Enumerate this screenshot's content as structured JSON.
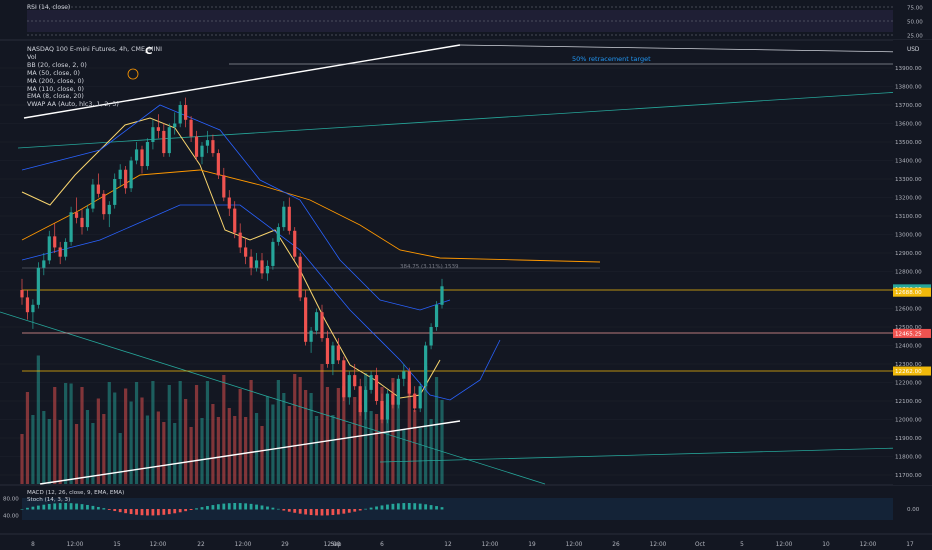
{
  "chart_data": {
    "type": "candlestick",
    "title": "NASDAQ 100 E-mini Futures, 4h, CME_MINI",
    "indicators": [
      "Vol",
      "BB (20, close, 2, 0)",
      "MA (50, close, 0)",
      "MA (200, close, 0)",
      "MA (110, close, 0)",
      "EMA (8, close, 20)",
      "VWAP AA (Auto, hlc3, 1, 2, 3)"
    ],
    "currency": "USD",
    "y_ticks": [
      13900,
      13800,
      13700,
      13600,
      13500,
      13400,
      13300,
      13200,
      13100,
      13000,
      12900,
      12800,
      12700,
      12600,
      12500,
      12400,
      12300,
      12200,
      12100,
      12000,
      11900,
      11800,
      11700
    ],
    "y_tick_labels": [
      "13900.00",
      "13800.00",
      "13700.00",
      "13600.00",
      "13500.00",
      "13400.00",
      "13300.00",
      "13200.00",
      "13100.00",
      "13000.00",
      "12900.00",
      "12800.00",
      "12700.00",
      "12600.00",
      "12500.00",
      "12400.00",
      "12300.00",
      "12200.00",
      "12100.00",
      "12000.00",
      "11900.00",
      "11800.00",
      "11700.00"
    ],
    "x_tick_labels": [
      "8",
      "12:00",
      "15",
      "12:00",
      "22",
      "12:00",
      "29",
      "12:00",
      "Sep",
      "6",
      "12",
      "12:00",
      "19",
      "12:00",
      "26",
      "12:00",
      "Oct",
      "5",
      "12:00",
      "10",
      "12:00",
      "17",
      "12:00"
    ],
    "price_labels": [
      {
        "value": 12706.25,
        "text": "12706.25",
        "color": "#26a69a"
      },
      {
        "value": 12688.0,
        "text": "12688.00",
        "color": "#f0b90b"
      },
      {
        "value": 12465.25,
        "text": "12465.25",
        "color": "#ef5350"
      },
      {
        "value": 12262.0,
        "text": "12262.00",
        "color": "#f0b90b"
      }
    ],
    "annotations": {
      "marker": "C",
      "target": "50% retracement target",
      "measure": "384.75 (3.11%) 1539"
    },
    "rsi": {
      "label": "RSI (14, close)",
      "levels": [
        "75.00",
        "50.00",
        "25.00"
      ]
    },
    "macd": {
      "label1": "MACD (12, 26, close, 9, EMA, EMA)",
      "label2": "Stoch (14, 3, 3)",
      "levels": [
        "80.00",
        "40.00"
      ],
      "zero": "0.00"
    },
    "candles": [
      [
        12700,
        12760,
        12620,
        12660
      ],
      [
        12660,
        12700,
        12540,
        12580
      ],
      [
        12580,
        12650,
        12490,
        12620
      ],
      [
        12620,
        12850,
        12600,
        12820
      ],
      [
        12820,
        12900,
        12780,
        12860
      ],
      [
        12860,
        13020,
        12840,
        12990
      ],
      [
        12990,
        13060,
        12900,
        12930
      ],
      [
        12930,
        12960,
        12840,
        12880
      ],
      [
        12880,
        12980,
        12860,
        12960
      ],
      [
        12960,
        13150,
        12940,
        13120
      ],
      [
        13120,
        13200,
        13060,
        13090
      ],
      [
        13090,
        13140,
        13000,
        13040
      ],
      [
        13040,
        13160,
        13020,
        13140
      ],
      [
        13140,
        13300,
        13120,
        13270
      ],
      [
        13270,
        13330,
        13200,
        13220
      ],
      [
        13220,
        13240,
        13080,
        13110
      ],
      [
        13110,
        13180,
        13040,
        13160
      ],
      [
        13160,
        13330,
        13140,
        13300
      ],
      [
        13300,
        13380,
        13260,
        13350
      ],
      [
        13350,
        13370,
        13220,
        13250
      ],
      [
        13250,
        13420,
        13230,
        13400
      ],
      [
        13400,
        13500,
        13380,
        13460
      ],
      [
        13460,
        13480,
        13330,
        13370
      ],
      [
        13370,
        13520,
        13350,
        13500
      ],
      [
        13500,
        13620,
        13460,
        13580
      ],
      [
        13580,
        13650,
        13520,
        13560
      ],
      [
        13560,
        13600,
        13420,
        13440
      ],
      [
        13440,
        13600,
        13420,
        13580
      ],
      [
        13580,
        13660,
        13540,
        13600
      ],
      [
        13600,
        13720,
        13580,
        13700
      ],
      [
        13700,
        13740,
        13580,
        13620
      ],
      [
        13620,
        13640,
        13500,
        13530
      ],
      [
        13530,
        13560,
        13400,
        13420
      ],
      [
        13420,
        13500,
        13380,
        13480
      ],
      [
        13480,
        13560,
        13440,
        13510
      ],
      [
        13510,
        13540,
        13420,
        13440
      ],
      [
        13440,
        13460,
        13300,
        13320
      ],
      [
        13320,
        13360,
        13180,
        13200
      ],
      [
        13200,
        13240,
        13100,
        13140
      ],
      [
        13140,
        13180,
        12980,
        13010
      ],
      [
        13010,
        13060,
        12900,
        12930
      ],
      [
        12930,
        12980,
        12840,
        12880
      ],
      [
        12880,
        12920,
        12780,
        12820
      ],
      [
        12820,
        12900,
        12800,
        12860
      ],
      [
        12860,
        12900,
        12760,
        12790
      ],
      [
        12790,
        12860,
        12750,
        12830
      ],
      [
        12830,
        12980,
        12810,
        12960
      ],
      [
        12960,
        13060,
        12940,
        13040
      ],
      [
        13040,
        13180,
        13020,
        13150
      ],
      [
        13150,
        13200,
        13000,
        13020
      ],
      [
        13020,
        13040,
        12860,
        12880
      ],
      [
        12880,
        12900,
        12640,
        12660
      ],
      [
        12660,
        12700,
        12400,
        12420
      ],
      [
        12420,
        12500,
        12360,
        12480
      ],
      [
        12480,
        12600,
        12460,
        12580
      ],
      [
        12580,
        12620,
        12420,
        12440
      ],
      [
        12440,
        12480,
        12280,
        12300
      ],
      [
        12300,
        12420,
        12240,
        12400
      ],
      [
        12400,
        12440,
        12300,
        12320
      ],
      [
        12320,
        12340,
        12100,
        12120
      ],
      [
        12120,
        12260,
        12080,
        12240
      ],
      [
        12240,
        12300,
        12160,
        12180
      ],
      [
        12180,
        12220,
        12020,
        12040
      ],
      [
        12040,
        12180,
        12000,
        12160
      ],
      [
        12160,
        12260,
        12140,
        12240
      ],
      [
        12240,
        12280,
        12080,
        12100
      ],
      [
        12100,
        12140,
        11980,
        12000
      ],
      [
        12000,
        12160,
        11980,
        12140
      ],
      [
        12140,
        12200,
        12060,
        12080
      ],
      [
        12080,
        12240,
        12060,
        12220
      ],
      [
        12220,
        12300,
        12180,
        12260
      ],
      [
        12260,
        12280,
        12120,
        12140
      ],
      [
        12140,
        12180,
        12040,
        12060
      ],
      [
        12060,
        12200,
        12040,
        12180
      ],
      [
        12180,
        12420,
        12160,
        12400
      ],
      [
        12400,
        12520,
        12380,
        12500
      ],
      [
        12500,
        12640,
        12480,
        12620
      ],
      [
        12620,
        12760,
        12600,
        12720
      ]
    ]
  }
}
